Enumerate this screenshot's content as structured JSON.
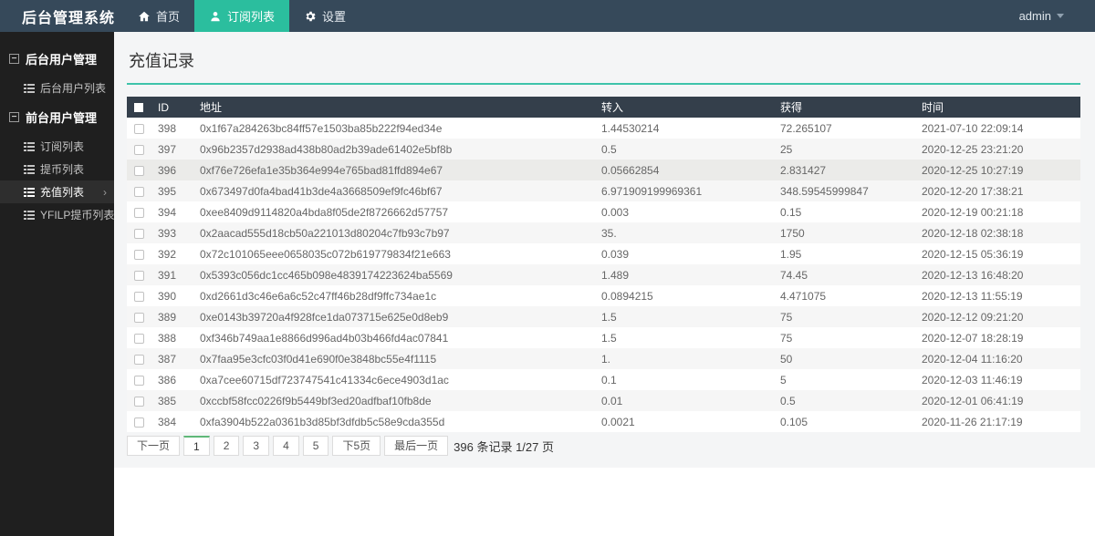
{
  "app": {
    "title": "后台管理系统"
  },
  "navbar": {
    "tabs": [
      {
        "label": "首页",
        "icon": "home-icon"
      },
      {
        "label": "订阅列表",
        "icon": "user-icon"
      },
      {
        "label": "设置",
        "icon": "gear-icon"
      }
    ],
    "user": "admin"
  },
  "sidebar": {
    "sections": [
      {
        "title": "后台用户管理",
        "items": [
          {
            "label": "后台用户列表"
          }
        ]
      },
      {
        "title": "前台用户管理",
        "items": [
          {
            "label": "订阅列表"
          },
          {
            "label": "提币列表"
          },
          {
            "label": "充值列表"
          },
          {
            "label": "YFILP提币列表"
          }
        ]
      }
    ]
  },
  "main": {
    "title": "充值记录",
    "table": {
      "headers": [
        "ID",
        "地址",
        "转入",
        "获得",
        "时间"
      ],
      "rows": [
        [
          "398",
          "0x1f67a284263bc84ff57e1503ba85b222f94ed34e",
          "1.44530214",
          "72.265107",
          "2021-07-10 22:09:14"
        ],
        [
          "397",
          "0x96b2357d2938ad438b80ad2b39ade61402e5bf8b",
          "0.5",
          "25",
          "2020-12-25 23:21:20"
        ],
        [
          "396",
          "0xf76e726efa1e35b364e994e765bad81ffd894e67",
          "0.05662854",
          "2.831427",
          "2020-12-25 10:27:19"
        ],
        [
          "395",
          "0x673497d0fa4bad41b3de4a3668509ef9fc46bf67",
          "6.971909199969361",
          "348.59545999847",
          "2020-12-20 17:38:21"
        ],
        [
          "394",
          "0xee8409d9114820a4bda8f05de2f8726662d57757",
          "0.003",
          "0.15",
          "2020-12-19 00:21:18"
        ],
        [
          "393",
          "0x2aacad555d18cb50a221013d80204c7fb93c7b97",
          "35.",
          "1750",
          "2020-12-18 02:38:18"
        ],
        [
          "392",
          "0x72c101065eee0658035c072b619779834f21e663",
          "0.039",
          "1.95",
          "2020-12-15 05:36:19"
        ],
        [
          "391",
          "0x5393c056dc1cc465b098e4839174223624ba5569",
          "1.489",
          "74.45",
          "2020-12-13 16:48:20"
        ],
        [
          "390",
          "0xd2661d3c46e6a6c52c47ff46b28df9ffc734ae1c",
          "0.0894215",
          "4.471075",
          "2020-12-13 11:55:19"
        ],
        [
          "389",
          "0xe0143b39720a4f928fce1da073715e625e0d8eb9",
          "1.5",
          "75",
          "2020-12-12 09:21:20"
        ],
        [
          "388",
          "0xf346b749aa1e8866d996ad4b03b466fd4ac07841",
          "1.5",
          "75",
          "2020-12-07 18:28:19"
        ],
        [
          "387",
          "0x7faa95e3cfc03f0d41e690f0e3848bc55e4f1115",
          "1.",
          "50",
          "2020-12-04 11:16:20"
        ],
        [
          "386",
          "0xa7cee60715df723747541c41334c6ece4903d1ac",
          "0.1",
          "5",
          "2020-12-03 11:46:19"
        ],
        [
          "385",
          "0xccbf58fcc0226f9b5449bf3ed20adfbaf10fb8de",
          "0.01",
          "0.5",
          "2020-12-01 06:41:19"
        ],
        [
          "384",
          "0xfa3904b522a0361b3d85bf3dfdb5c58e9cda355d",
          "0.0021",
          "0.105",
          "2020-11-26 21:17:19"
        ]
      ]
    },
    "pagination": {
      "prev": "下一页",
      "pages": [
        "1",
        "2",
        "3",
        "4",
        "5"
      ],
      "active_page": "1",
      "next5": "下5页",
      "last": "最后一页",
      "summary": "396 条记录 1/27 页"
    }
  },
  "colors": {
    "navbar_bg": "#36495a",
    "active_tab_bg": "#2bbe9e",
    "sidebar_bg": "#1f1f1f",
    "table_header_bg": "#343f4b",
    "title_underline": "#3ec3aa",
    "active_page_border": "#5FB878"
  }
}
